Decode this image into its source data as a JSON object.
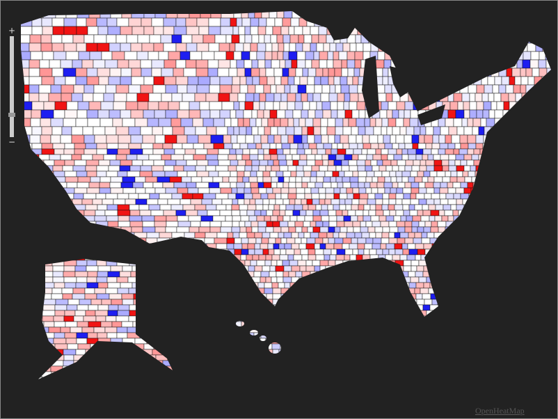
{
  "zoom_control": {
    "zoom_in": "+",
    "zoom_out": "−"
  },
  "attribution": "OpenHeatMap"
}
